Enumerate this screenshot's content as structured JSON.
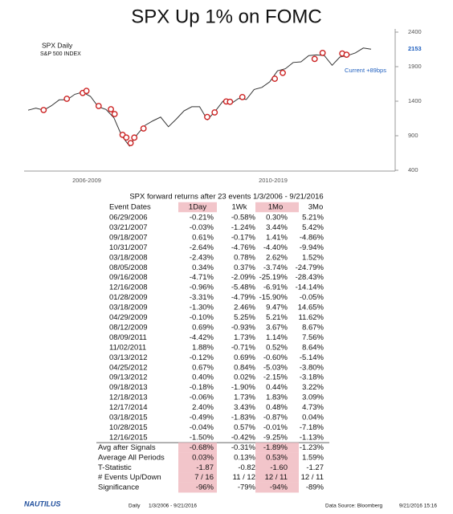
{
  "chart_data": {
    "type": "line",
    "title": "SPX Up 1% on FOMC",
    "subtitle": "S&P 500 INDEX",
    "xlim": [
      "1/3/2006",
      "9/21/2016"
    ],
    "ylim": [
      400,
      2400
    ],
    "yticks": [
      400,
      900,
      1400,
      1900,
      2400
    ],
    "x_period_labels": [
      "2006-2009",
      "2010-2019"
    ],
    "current_value": 2153,
    "current_note": "Current +89bps",
    "series": [
      {
        "name": "SPX Daily",
        "color": "#333333",
        "values": [
          1270,
          1300,
          1270,
          1335,
          1420,
          1420,
          1500,
          1530,
          1470,
          1320,
          1280,
          1160,
          900,
          750,
          920,
          1050,
          1115,
          1170,
          1030,
          1140,
          1260,
          1320,
          1320,
          1130,
          1255,
          1400,
          1360,
          1440,
          1425,
          1570,
          1600,
          1680,
          1840,
          1870,
          1960,
          1970,
          2060,
          2070,
          2060,
          1920,
          2040,
          2060,
          2100,
          2170,
          2153
        ]
      },
      {
        "color": "#cc2222",
        "values": [
          1272,
          1435,
          1519,
          1549,
          1330,
          1284,
          1214,
          913,
          874,
          794,
          873,
          1005,
          1172,
          1237,
          1396,
          1391,
          1460,
          1725,
          1810,
          2012,
          2099,
          2090,
          2073
        ]
      }
    ]
  },
  "table": {
    "title": "SPX forward returns after 23 events 1/3/2006 - 9/21/2016",
    "header": [
      "Event Dates",
      "1Day",
      "1Wk",
      "1Mo",
      "3Mo"
    ],
    "rows": [
      [
        "06/29/2006",
        "-0.21%",
        "-0.58%",
        "0.30%",
        "5.21%"
      ],
      [
        "03/21/2007",
        "-0.03%",
        "-1.24%",
        "3.44%",
        "5.42%"
      ],
      [
        "09/18/2007",
        "0.61%",
        "-0.17%",
        "1.41%",
        "-4.86%"
      ],
      [
        "10/31/2007",
        "-2.64%",
        "-4.76%",
        "-4.40%",
        "-9.94%"
      ],
      [
        "03/18/2008",
        "-2.43%",
        "0.78%",
        "2.62%",
        "1.52%"
      ],
      [
        "08/05/2008",
        "0.34%",
        "0.37%",
        "-3.74%",
        "-24.79%"
      ],
      [
        "09/16/2008",
        "-4.71%",
        "-2.09%",
        "-25.19%",
        "-28.43%"
      ],
      [
        "12/16/2008",
        "-0.96%",
        "-5.48%",
        "-6.91%",
        "-14.14%"
      ],
      [
        "01/28/2009",
        "-3.31%",
        "-4.79%",
        "-15.90%",
        "-0.05%"
      ],
      [
        "03/18/2009",
        "-1.30%",
        "2.46%",
        "9.47%",
        "14.65%"
      ],
      [
        "04/29/2009",
        "-0.10%",
        "5.25%",
        "5.21%",
        "11.62%"
      ],
      [
        "08/12/2009",
        "0.69%",
        "-0.93%",
        "3.67%",
        "8.67%"
      ],
      [
        "08/09/2011",
        "-4.42%",
        "1.73%",
        "1.14%",
        "7.56%"
      ],
      [
        "11/02/2011",
        "1.88%",
        "-0.71%",
        "0.52%",
        "8.64%"
      ],
      [
        "03/13/2012",
        "-0.12%",
        "0.69%",
        "-0.60%",
        "-5.14%"
      ],
      [
        "04/25/2012",
        "0.67%",
        "0.84%",
        "-5.03%",
        "-3.80%"
      ],
      [
        "09/13/2012",
        "0.40%",
        "0.02%",
        "-2.15%",
        "-3.18%"
      ],
      [
        "09/18/2013",
        "-0.18%",
        "-1.90%",
        "0.44%",
        "3.22%"
      ],
      [
        "12/18/2013",
        "-0.06%",
        "1.73%",
        "1.83%",
        "3.09%"
      ],
      [
        "12/17/2014",
        "2.40%",
        "3.43%",
        "0.48%",
        "4.73%"
      ],
      [
        "03/18/2015",
        "-0.49%",
        "-1.83%",
        "-0.87%",
        "0.04%"
      ],
      [
        "10/28/2015",
        "-0.04%",
        "0.57%",
        "-0.01%",
        "-7.18%"
      ],
      [
        "12/16/2015",
        "-1.50%",
        "-0.42%",
        "-9.25%",
        "-1.13%"
      ]
    ],
    "summary": [
      [
        "Avg after Signals",
        "-0.68%",
        "-0.31%",
        "-1.89%",
        "-1.23%"
      ],
      [
        "Average All Periods",
        "0.03%",
        "0.13%",
        "0.53%",
        "1.59%"
      ],
      [
        "T-Statistic",
        "-1.87",
        "-0.82",
        "-1.60",
        "-1.27"
      ],
      [
        "# Events Up/Down",
        "7 / 16",
        "11 / 12",
        "12 / 11",
        "12 / 11"
      ],
      [
        "Significance",
        "-96%",
        "-79%",
        "-94%",
        "-89%"
      ]
    ]
  },
  "footer": {
    "logo": "NAUTILUS",
    "frequency": "Daily",
    "range": "1/3/2006 - 9/21/2016",
    "source": "Data Source: Bloomberg",
    "timestamp": "9/21/2016 15:16"
  }
}
